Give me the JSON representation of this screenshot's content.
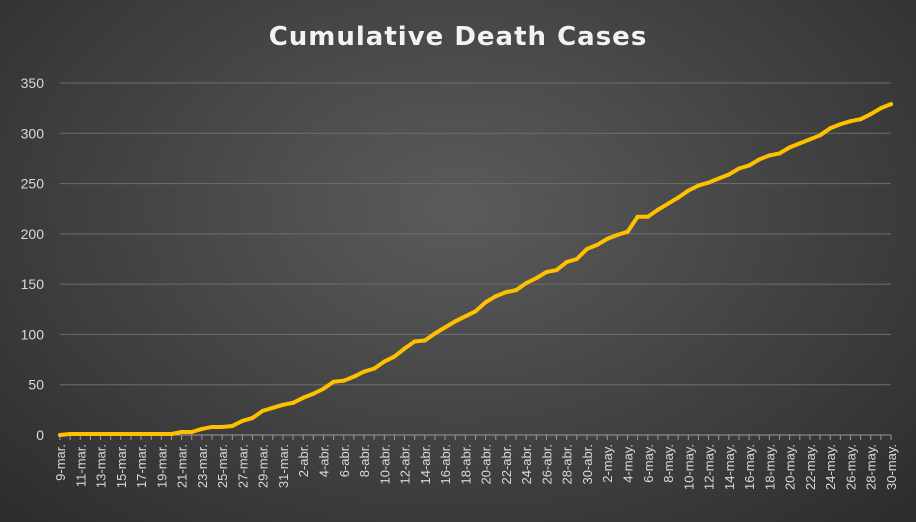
{
  "chart_data": {
    "type": "line",
    "title": "Cumulative Death Cases",
    "xlabel": "",
    "ylabel": "",
    "ylim": [
      0,
      350
    ],
    "yticks": [
      0,
      50,
      100,
      150,
      200,
      250,
      300,
      350
    ],
    "grid": true,
    "legend": "none",
    "line_color": "#ffc000",
    "x": [
      "9-mar.",
      "10-mar.",
      "11-mar.",
      "12-mar.",
      "13-mar.",
      "14-mar.",
      "15-mar.",
      "16-mar.",
      "17-mar.",
      "18-mar.",
      "19-mar.",
      "20-mar.",
      "21-mar.",
      "22-mar.",
      "23-mar.",
      "24-mar.",
      "25-mar.",
      "26-mar.",
      "27-mar.",
      "28-mar.",
      "29-mar.",
      "30-mar.",
      "31-mar.",
      "1-abr.",
      "2-abr.",
      "3-abr.",
      "4-abr.",
      "5-abr.",
      "6-abr.",
      "7-abr.",
      "8-abr.",
      "9-abr.",
      "10-abr.",
      "11-abr.",
      "12-abr.",
      "13-abr.",
      "14-abr.",
      "15-abr.",
      "16-abr.",
      "17-abr.",
      "18-abr.",
      "19-abr.",
      "20-abr.",
      "21-abr.",
      "22-abr.",
      "23-abr.",
      "24-abr.",
      "25-abr.",
      "26-abr.",
      "27-abr.",
      "28-abr.",
      "29-abr.",
      "30-abr.",
      "1-may.",
      "2-may.",
      "3-may.",
      "4-may.",
      "5-may.",
      "6-may.",
      "7-may.",
      "8-may.",
      "9-may.",
      "10-may.",
      "11-may.",
      "12-may.",
      "13-may.",
      "14-may.",
      "15-may.",
      "16-may.",
      "17-may.",
      "18-may.",
      "19-may.",
      "20-may.",
      "21-may.",
      "22-may.",
      "23-may.",
      "24-may.",
      "25-may.",
      "26-may.",
      "27-may.",
      "28-may.",
      "29-may.",
      "30-may."
    ],
    "x_tick_labels": [
      "9-mar.",
      "11-mar.",
      "13-mar.",
      "15-mar.",
      "17-mar.",
      "19-mar.",
      "21-mar.",
      "23-mar.",
      "25-mar.",
      "27-mar.",
      "29-mar.",
      "31-mar.",
      "2-abr.",
      "4-abr.",
      "6-abr.",
      "8-abr.",
      "10-abr.",
      "12-abr.",
      "14-abr.",
      "16-abr.",
      "18-abr.",
      "20-abr.",
      "22-abr.",
      "24-abr.",
      "26-abr.",
      "28-abr.",
      "30-abr.",
      "2-may.",
      "4-may.",
      "6-may.",
      "8-may.",
      "10-may.",
      "12-may.",
      "14-may.",
      "16-may.",
      "18-may.",
      "20-may.",
      "22-may.",
      "24-may.",
      "26-may.",
      "28-may.",
      "30-may."
    ],
    "series": [
      {
        "values": [
          0,
          1,
          1,
          1,
          1,
          1,
          1,
          1,
          1,
          1,
          1,
          1,
          3,
          3,
          6,
          8,
          8,
          9,
          14,
          17,
          24,
          27,
          30,
          32,
          37,
          41,
          46,
          53,
          54,
          58,
          63,
          66,
          73,
          78,
          86,
          93,
          94,
          101,
          107,
          113,
          118,
          123,
          132,
          138,
          142,
          144,
          151,
          156,
          162,
          164,
          172,
          175,
          185,
          189,
          195,
          199,
          202,
          217,
          217,
          224,
          230,
          236,
          243,
          248,
          251,
          255,
          259,
          265,
          268,
          274,
          278,
          280,
          286,
          290,
          294,
          298,
          305,
          309,
          312,
          314,
          319,
          325,
          329
        ]
      }
    ]
  }
}
